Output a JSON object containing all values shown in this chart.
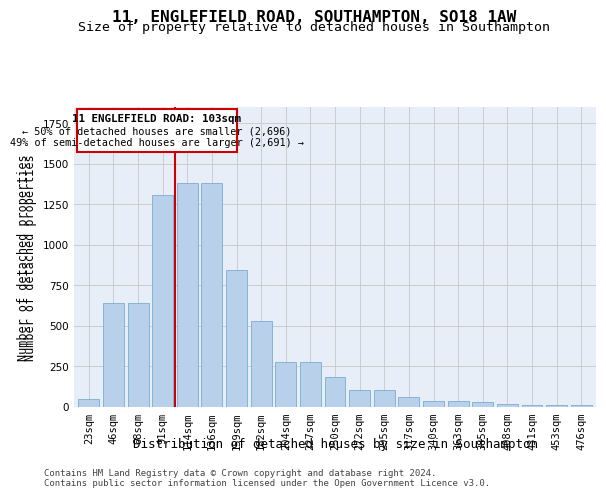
{
  "title_line1": "11, ENGLEFIELD ROAD, SOUTHAMPTON, SO18 1AW",
  "title_line2": "Size of property relative to detached houses in Southampton",
  "xlabel": "Distribution of detached houses by size in Southampton",
  "ylabel": "Number of detached properties",
  "categories": [
    "23sqm",
    "46sqm",
    "68sqm",
    "91sqm",
    "114sqm",
    "136sqm",
    "159sqm",
    "182sqm",
    "204sqm",
    "227sqm",
    "250sqm",
    "272sqm",
    "295sqm",
    "317sqm",
    "340sqm",
    "363sqm",
    "385sqm",
    "408sqm",
    "431sqm",
    "453sqm",
    "476sqm"
  ],
  "values": [
    50,
    640,
    640,
    1310,
    1380,
    1380,
    845,
    530,
    275,
    275,
    185,
    105,
    105,
    60,
    35,
    35,
    30,
    20,
    10,
    10,
    15
  ],
  "bar_color": "#b8d0ea",
  "bar_edgecolor": "#7aadd4",
  "vline_x_index": 4,
  "vline_color": "#cc0000",
  "annotation_box_color": "#cc0000",
  "annotation_text_line1": "11 ENGLEFIELD ROAD: 103sqm",
  "annotation_text_line2": "← 50% of detached houses are smaller (2,696)",
  "annotation_text_line3": "49% of semi-detached houses are larger (2,691) →",
  "ylim": [
    0,
    1850
  ],
  "grid_color": "#cccccc",
  "background_color": "#e8eef8",
  "footer_line1": "Contains HM Land Registry data © Crown copyright and database right 2024.",
  "footer_line2": "Contains public sector information licensed under the Open Government Licence v3.0.",
  "title_fontsize": 11.5,
  "subtitle_fontsize": 9.5,
  "xlabel_fontsize": 9,
  "ylabel_fontsize": 8.5,
  "tick_fontsize": 7.5,
  "footer_fontsize": 6.5
}
